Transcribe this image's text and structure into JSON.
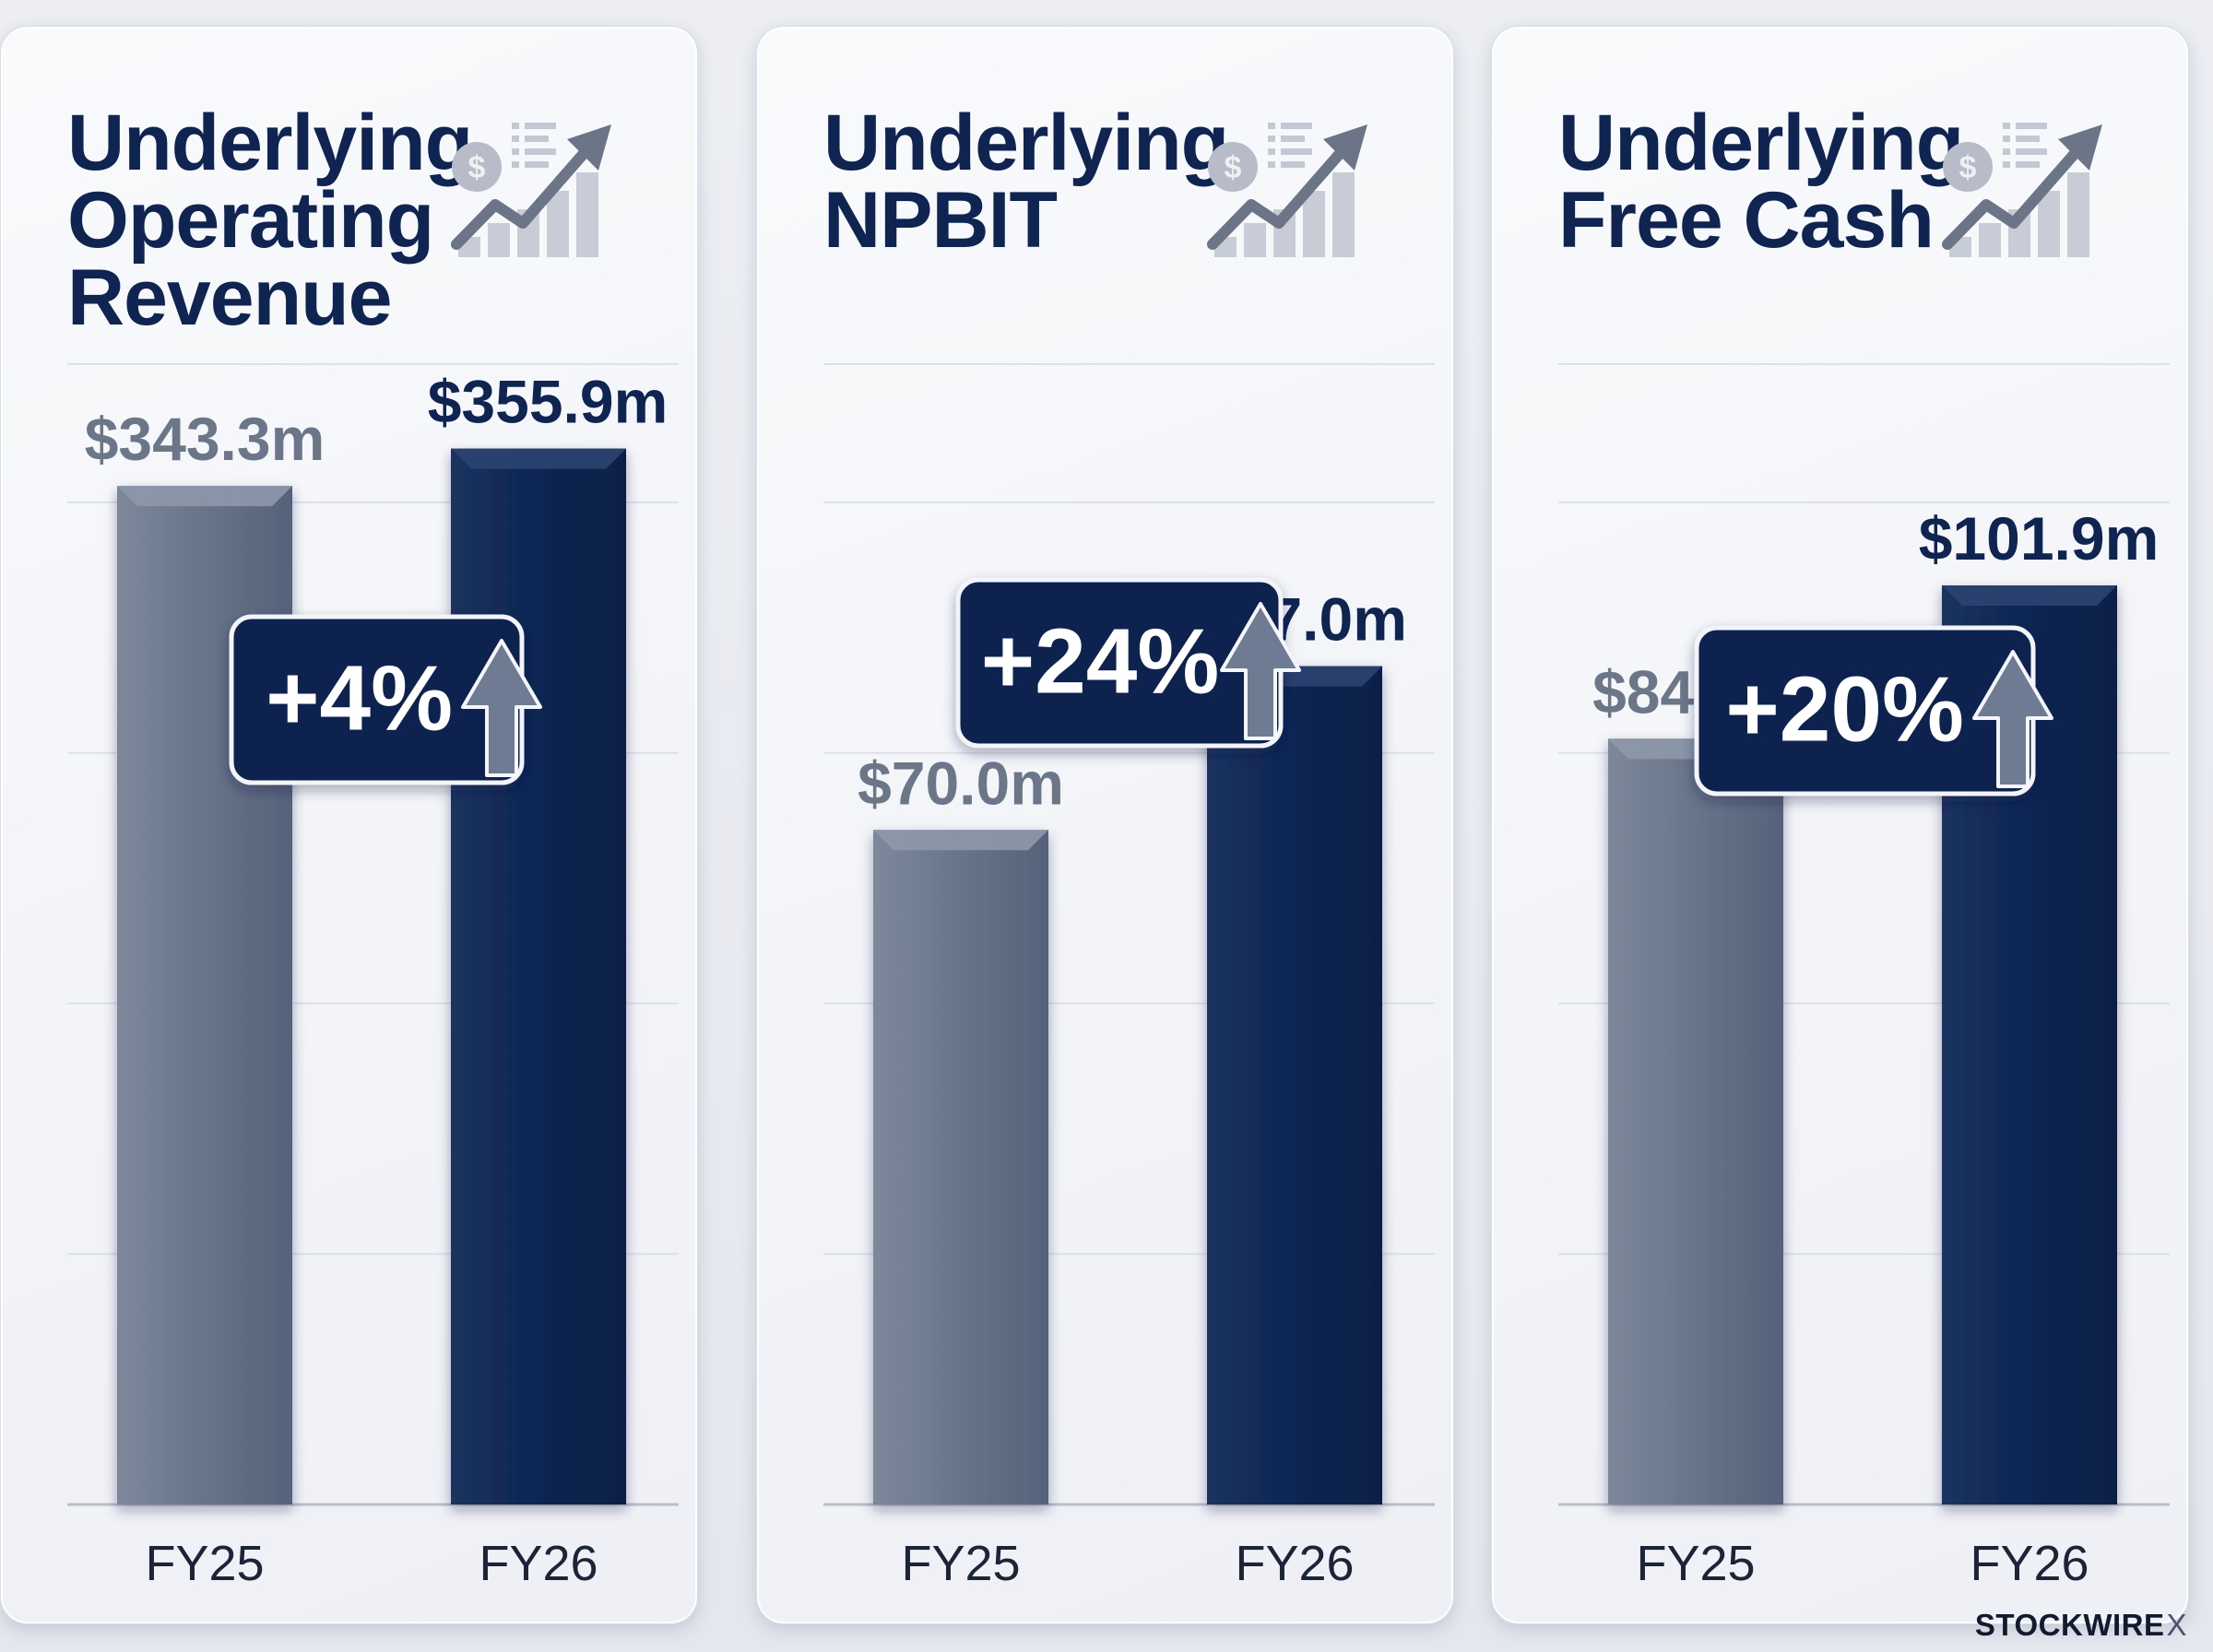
{
  "chart_data": [
    {
      "type": "bar",
      "title": "Underlying Operating Revenue",
      "title_lines": [
        "Underlying",
        "Operating",
        "Revenue"
      ],
      "categories": [
        "FY25",
        "FY26"
      ],
      "values": [
        343.3,
        355.9
      ],
      "value_labels": [
        "$343.3m",
        "$355.9m"
      ],
      "change_label": "+4%",
      "ylim": [
        0,
        380
      ],
      "grid": true
    },
    {
      "type": "bar",
      "title": "Underlying NPBIT",
      "title_lines": [
        "Underlying",
        "NPBIT"
      ],
      "categories": [
        "FY25",
        "FY26"
      ],
      "values": [
        70.0,
        87.0
      ],
      "value_labels": [
        "$70.0m",
        "$87.0m"
      ],
      "change_label": "+24%",
      "ylim": [
        0,
        117
      ],
      "grid": true
    },
    {
      "type": "bar",
      "title": "Underlying Free Cash",
      "title_lines": [
        "Underlying",
        "Free Cash"
      ],
      "categories": [
        "FY25",
        "FY26"
      ],
      "values": [
        84.9,
        101.9
      ],
      "value_labels": [
        "$84.9m",
        "$101.9m"
      ],
      "change_label": "+20%",
      "ylim": [
        0,
        125
      ],
      "grid": true
    }
  ],
  "colors": {
    "fy25_bar": "#677489",
    "fy26_bar": "#0c2552",
    "title": "#0f2450",
    "badge": "#0d2450",
    "fy25_label": "#6b7689",
    "fy26_label": "#0f2450"
  },
  "icon": "growth-chart-dollar-icon",
  "footer": {
    "brand": "STOCKWIRE",
    "brand_mark": "X"
  }
}
